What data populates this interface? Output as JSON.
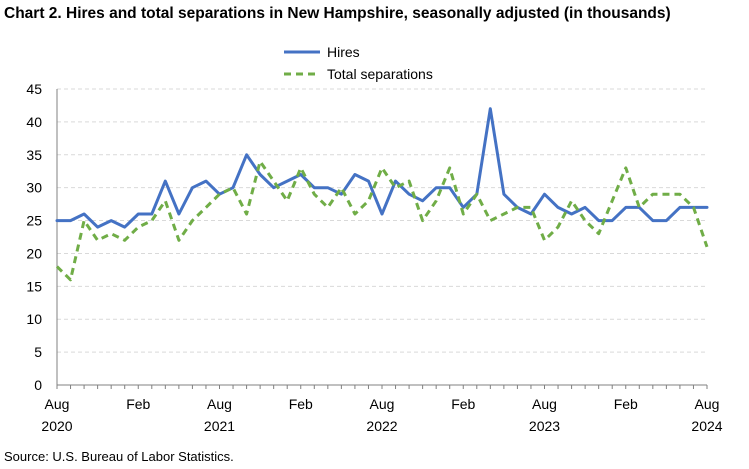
{
  "title": "Chart 2. Hires and total separations in New Hampshire, seasonally adjusted (in thousands)",
  "source": "Source: U.S. Bureau of Labor Statistics.",
  "chart_data": {
    "type": "line",
    "title": "Chart 2. Hires and total separations in New Hampshire, seasonally adjusted (in thousands)",
    "xlabel": "",
    "ylabel": "",
    "ylim": [
      0,
      45
    ],
    "yticks": [
      "0",
      "5",
      "10",
      "15",
      "20",
      "25",
      "30",
      "35",
      "40",
      "45"
    ],
    "grid": true,
    "legend_position": "top-center",
    "x": [
      "2020-08",
      "2020-09",
      "2020-10",
      "2020-11",
      "2020-12",
      "2021-01",
      "2021-02",
      "2021-03",
      "2021-04",
      "2021-05",
      "2021-06",
      "2021-07",
      "2021-08",
      "2021-09",
      "2021-10",
      "2021-11",
      "2021-12",
      "2022-01",
      "2022-02",
      "2022-03",
      "2022-04",
      "2022-05",
      "2022-06",
      "2022-07",
      "2022-08",
      "2022-09",
      "2022-10",
      "2022-11",
      "2022-12",
      "2023-01",
      "2023-02",
      "2023-03",
      "2023-04",
      "2023-05",
      "2023-06",
      "2023-07",
      "2023-08",
      "2023-09",
      "2023-10",
      "2023-11",
      "2023-12",
      "2024-01",
      "2024-02",
      "2024-03",
      "2024-04",
      "2024-05",
      "2024-06",
      "2024-07",
      "2024-08"
    ],
    "xtick_labels": [
      {
        "month": "Aug",
        "year": "2020"
      },
      {
        "month": "Feb",
        "year": ""
      },
      {
        "month": "Aug",
        "year": "2021"
      },
      {
        "month": "Feb",
        "year": ""
      },
      {
        "month": "Aug",
        "year": "2022"
      },
      {
        "month": "Feb",
        "year": ""
      },
      {
        "month": "Aug",
        "year": "2023"
      },
      {
        "month": "Feb",
        "year": ""
      },
      {
        "month": "Aug",
        "year": "2024"
      }
    ],
    "series": [
      {
        "name": "Hires",
        "color": "#4472c4",
        "style": "solid",
        "values": [
          25,
          25,
          26,
          24,
          25,
          24,
          26,
          26,
          31,
          26,
          30,
          31,
          29,
          30,
          35,
          32,
          30,
          31,
          32,
          30,
          30,
          29,
          32,
          31,
          26,
          31,
          29,
          28,
          30,
          30,
          27,
          29,
          42,
          29,
          27,
          26,
          29,
          27,
          26,
          27,
          25,
          25,
          27,
          27,
          25,
          25,
          27,
          27,
          27
        ]
      },
      {
        "name": "Total separations",
        "color": "#70ad47",
        "style": "dashed",
        "values": [
          18,
          16,
          25,
          22,
          23,
          22,
          24,
          25,
          28,
          22,
          25,
          27,
          29,
          30,
          26,
          34,
          31,
          28,
          33,
          29,
          27,
          30,
          26,
          28,
          33,
          30,
          31,
          25,
          28,
          33,
          26,
          29,
          25,
          26,
          27,
          27,
          22,
          24,
          28,
          25,
          23,
          28,
          33,
          27,
          29,
          29,
          29,
          27,
          21
        ]
      }
    ]
  }
}
